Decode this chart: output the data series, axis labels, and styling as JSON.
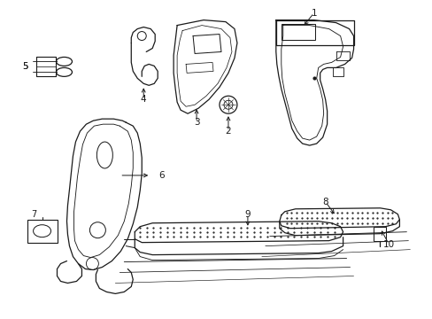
{
  "background": "#ffffff",
  "line_color": "#1a1a1a",
  "figsize": [
    4.89,
    3.6
  ],
  "dpi": 100
}
